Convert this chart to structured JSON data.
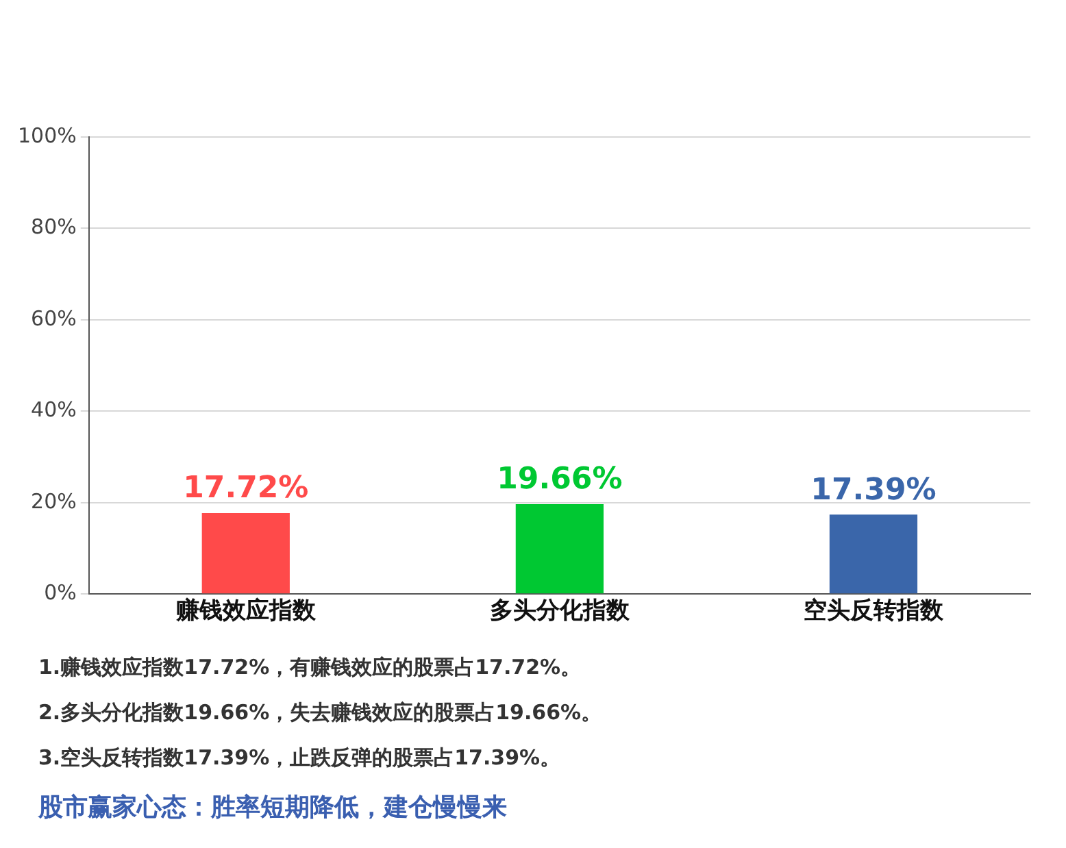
{
  "chart_data": {
    "type": "bar",
    "categories": [
      "赚钱效应指数",
      "多头分化指数",
      "空头反转指数"
    ],
    "values": [
      17.72,
      19.66,
      17.39
    ],
    "colors": [
      "#ff4a4a",
      "#00c832",
      "#3a66aa"
    ],
    "value_labels": [
      "17.72%",
      "19.66%",
      "17.39%"
    ],
    "ylim": [
      0,
      100
    ],
    "yticks": [
      {
        "value": 0,
        "label": "0%"
      },
      {
        "value": 20,
        "label": "20%"
      },
      {
        "value": 40,
        "label": "40%"
      },
      {
        "value": 60,
        "label": "60%"
      },
      {
        "value": 80,
        "label": "80%"
      },
      {
        "value": 100,
        "label": "100%"
      }
    ],
    "grid": "y",
    "annotations": [
      "1.赚钱效应指数17.72%，有赚钱效应的股票占17.72%。",
      "2.多头分化指数19.66%，失去赚钱效应的股票占19.66%。",
      "3.空头反转指数17.39%，止跌反弹的股票占17.39%。",
      "股市赢家心态：胜率短期降低，建仓慢慢来"
    ]
  }
}
